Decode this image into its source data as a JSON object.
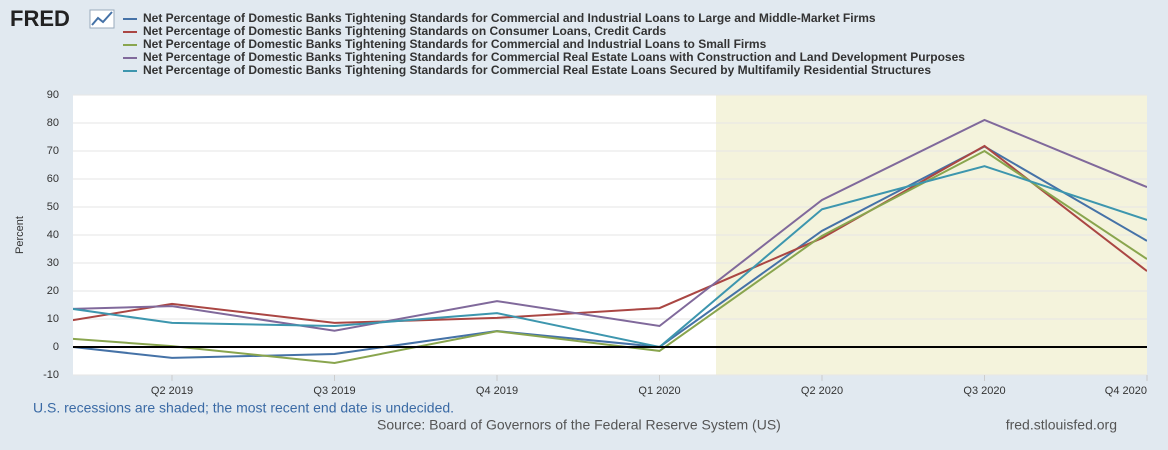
{
  "chart_data": {
    "type": "line",
    "logo": "FRED",
    "y_label": "Percent",
    "categories": [
      null,
      "Q2 2019",
      "Q3 2019",
      "Q4 2019",
      "Q1 2020",
      "Q2 2020",
      "Q3 2020",
      "Q4 2020"
    ],
    "series": [
      {
        "name": "Net Percentage of Domestic Banks Tightening Standards for Commercial and Industrial Loans to Large and Middle-Market Firms",
        "color": "#4572a7",
        "values": [
          2.5,
          -3.9,
          -2.5,
          5.7,
          0,
          41.5,
          71.6,
          37.9
        ]
      },
      {
        "name": "Net Percentage of Domestic Banks Tightening Standards on Consumer Loans, Credit Cards",
        "color": "#aa4643",
        "values": [
          5.9,
          15.4,
          8.6,
          10.4,
          13.9,
          38.9,
          71.8,
          27.1
        ]
      },
      {
        "name": "Net Percentage of Domestic Banks Tightening Standards for Commercial and Industrial Loans to Small Firms",
        "color": "#89a54e",
        "values": [
          4.6,
          0.3,
          -5.7,
          5.6,
          -1.4,
          39.7,
          70.0,
          31.4
        ]
      },
      {
        "name": "Net Percentage of Domestic Banks Tightening Standards for Commercial Real Estate Loans with Construction and Land Development Purposes",
        "color": "#80699b",
        "values": [
          13.0,
          14.6,
          5.8,
          16.4,
          7.5,
          52.5,
          81.1,
          57.1
        ]
      },
      {
        "name": "Net Percentage of Domestic Banks Tightening Standards for Commercial Real Estate Loans Secured by Multifamily Residential Structures",
        "color": "#3d96ae",
        "values": [
          16.8,
          8.6,
          7.5,
          12.1,
          0,
          49.2,
          64.6,
          45.4
        ]
      }
    ],
    "ylim": [
      -10,
      90
    ],
    "yticks": [
      -10,
      0,
      10,
      20,
      30,
      40,
      50,
      60,
      70,
      80,
      90
    ],
    "grid": true,
    "note": "U.S. recessions are shaded; the most recent end date is undecided.",
    "source": "Source: Board of Governors of the Federal Reserve System (US)",
    "site": "fred.stlouisfed.org"
  }
}
